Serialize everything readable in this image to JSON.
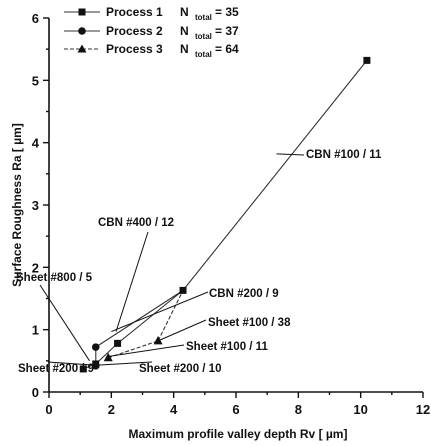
{
  "chart_data": {
    "type": "scatter",
    "xlabel": "Maximum profile valley depth Rv [ µm]",
    "ylabel": "Surface Roughness Ra [ µm]",
    "xlim": [
      0,
      12
    ],
    "ylim": [
      0,
      6
    ],
    "x_ticks": [
      "0",
      "2",
      "4",
      "6",
      "8",
      "10",
      "12"
    ],
    "y_ticks": [
      "0",
      "1",
      "2",
      "3",
      "4",
      "5",
      "6"
    ],
    "legend_position": "top-left",
    "series": [
      {
        "name": "Process 1",
        "marker": "square",
        "n_label": "N",
        "n_sub": "total",
        "n_value": "= 35",
        "x": [
          1.1,
          1.5,
          2.2,
          4.3,
          10.2
        ],
        "y": [
          0.37,
          0.45,
          0.78,
          1.63,
          5.32
        ]
      },
      {
        "name": "Process 2",
        "marker": "circle",
        "n_label": "N",
        "n_sub": "total",
        "n_value": "= 37",
        "x": [
          1.5,
          1.5
        ],
        "y": [
          0.72,
          0.42
        ]
      },
      {
        "name": "Process 3",
        "marker": "triangle",
        "n_label": "N",
        "n_sub": "total",
        "n_value": "= 64",
        "x": [
          1.9,
          3.5
        ],
        "y": [
          0.55,
          0.82
        ]
      }
    ],
    "annotations": [
      {
        "text": "CBN #100 / 11"
      },
      {
        "text": "CBN #400 / 12"
      },
      {
        "text": "CBN #200 / 9"
      },
      {
        "text": "Sheet #800 / 5"
      },
      {
        "text": "Sheet #100 / 38"
      },
      {
        "text": "Sheet #100 / 11"
      },
      {
        "text": "Sheet #200 / 9"
      },
      {
        "text": "Sheet #200 / 10"
      }
    ]
  }
}
